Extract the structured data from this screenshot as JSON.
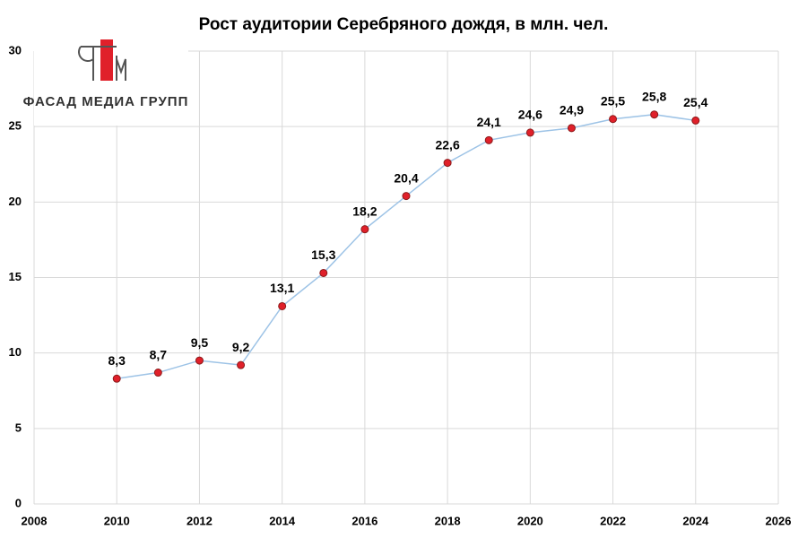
{
  "chart_data": {
    "type": "line",
    "title": "Рост аудитории Серебряного дождя, в млн. чел.",
    "watermark": "ФАСАД МЕДИА ГРУПП",
    "x": [
      2010,
      2011,
      2012,
      2013,
      2014,
      2015,
      2016,
      2017,
      2018,
      2019,
      2020,
      2021,
      2022,
      2023,
      2024
    ],
    "series": [
      {
        "color": "#9dc3e6",
        "marker_color": "#e0202a",
        "values": [
          8.3,
          8.7,
          9.5,
          9.2,
          13.1,
          15.3,
          18.2,
          20.4,
          22.6,
          24.1,
          24.6,
          24.9,
          25.5,
          25.8,
          25.4
        ],
        "value_labels": [
          "8,3",
          "8,7",
          "9,5",
          "9,2",
          "13,1",
          "15,3",
          "18,2",
          "20,4",
          "22,6",
          "24,1",
          "24,6",
          "24,9",
          "25,5",
          "25,8",
          "25,4"
        ]
      }
    ],
    "xlim": [
      2008,
      2026
    ],
    "xticks": [
      2008,
      2010,
      2012,
      2014,
      2016,
      2018,
      2020,
      2022,
      2024,
      2026
    ],
    "ylim": [
      0,
      30
    ],
    "yticks": [
      0,
      5,
      10,
      15,
      20,
      25,
      30
    ],
    "grid": true
  }
}
